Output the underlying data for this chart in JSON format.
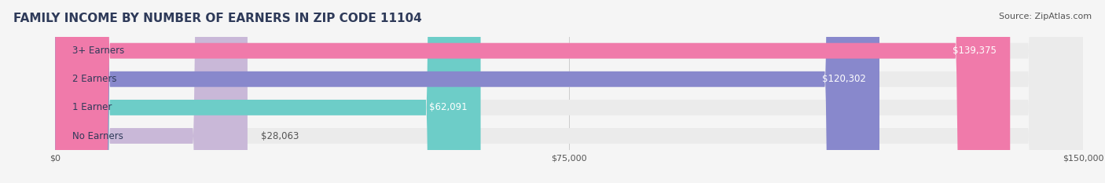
{
  "title": "FAMILY INCOME BY NUMBER OF EARNERS IN ZIP CODE 11104",
  "source": "Source: ZipAtlas.com",
  "categories": [
    "No Earners",
    "1 Earner",
    "2 Earners",
    "3+ Earners"
  ],
  "values": [
    28063,
    62091,
    120302,
    139375
  ],
  "bar_colors": [
    "#c9b8d8",
    "#6dcdc8",
    "#8888cc",
    "#f07aaa"
  ],
  "bar_edge_colors": [
    "#c9b8d8",
    "#6dcdc8",
    "#8888cc",
    "#f07aaa"
  ],
  "value_labels": [
    "$28,063",
    "$62,091",
    "$120,302",
    "$139,375"
  ],
  "xlim": [
    0,
    150000
  ],
  "xticks": [
    0,
    75000,
    150000
  ],
  "xtick_labels": [
    "$0",
    "$75,000",
    "$150,000"
  ],
  "bg_color": "#f5f5f5",
  "bar_bg_color": "#ebebeb",
  "title_color": "#2e3a59",
  "source_color": "#555555",
  "label_color": "#2e3a59",
  "value_color_inside": "#ffffff",
  "value_color_outside": "#555555",
  "title_fontsize": 11,
  "source_fontsize": 8,
  "bar_label_fontsize": 8.5,
  "value_fontsize": 8.5,
  "tick_fontsize": 8,
  "bar_height": 0.55,
  "fig_width": 14.06,
  "fig_height": 2.33
}
